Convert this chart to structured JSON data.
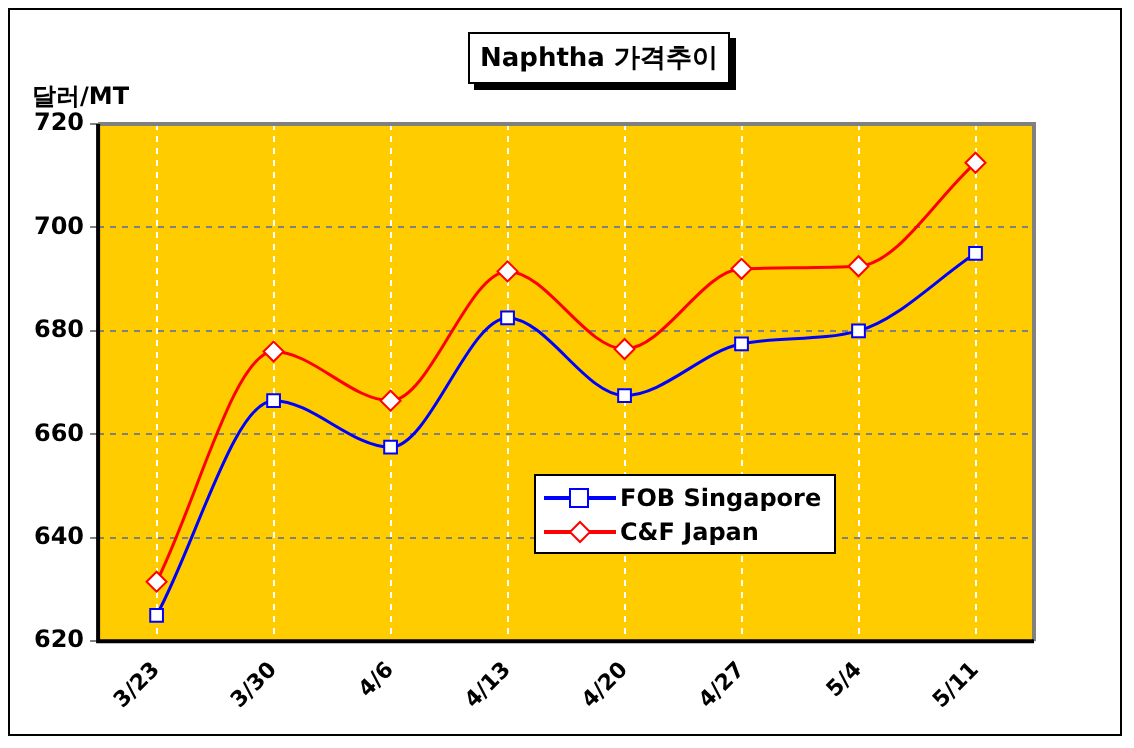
{
  "chart_data": {
    "type": "line",
    "title": "Naphtha 가격추이",
    "ylabel": "달러/MT",
    "categories": [
      "3/23",
      "3/30",
      "4/6",
      "4/13",
      "4/20",
      "4/27",
      "5/4",
      "5/11"
    ],
    "series": [
      {
        "name": "FOB Singapore",
        "color": "#0000ff",
        "marker": "square",
        "values": [
          625,
          666.5,
          657.5,
          682.5,
          667.5,
          677.5,
          680,
          695
        ]
      },
      {
        "name": "C&F Japan",
        "color": "#ff0000",
        "marker": "diamond",
        "values": [
          631.5,
          676,
          666.5,
          691.5,
          676.5,
          692,
          692.5,
          712.5
        ]
      }
    ],
    "ylim": [
      620,
      720
    ],
    "yticks": [
      620,
      640,
      660,
      680,
      700,
      720
    ],
    "grid": true,
    "legend": "bottom right",
    "line_style": "solid"
  }
}
